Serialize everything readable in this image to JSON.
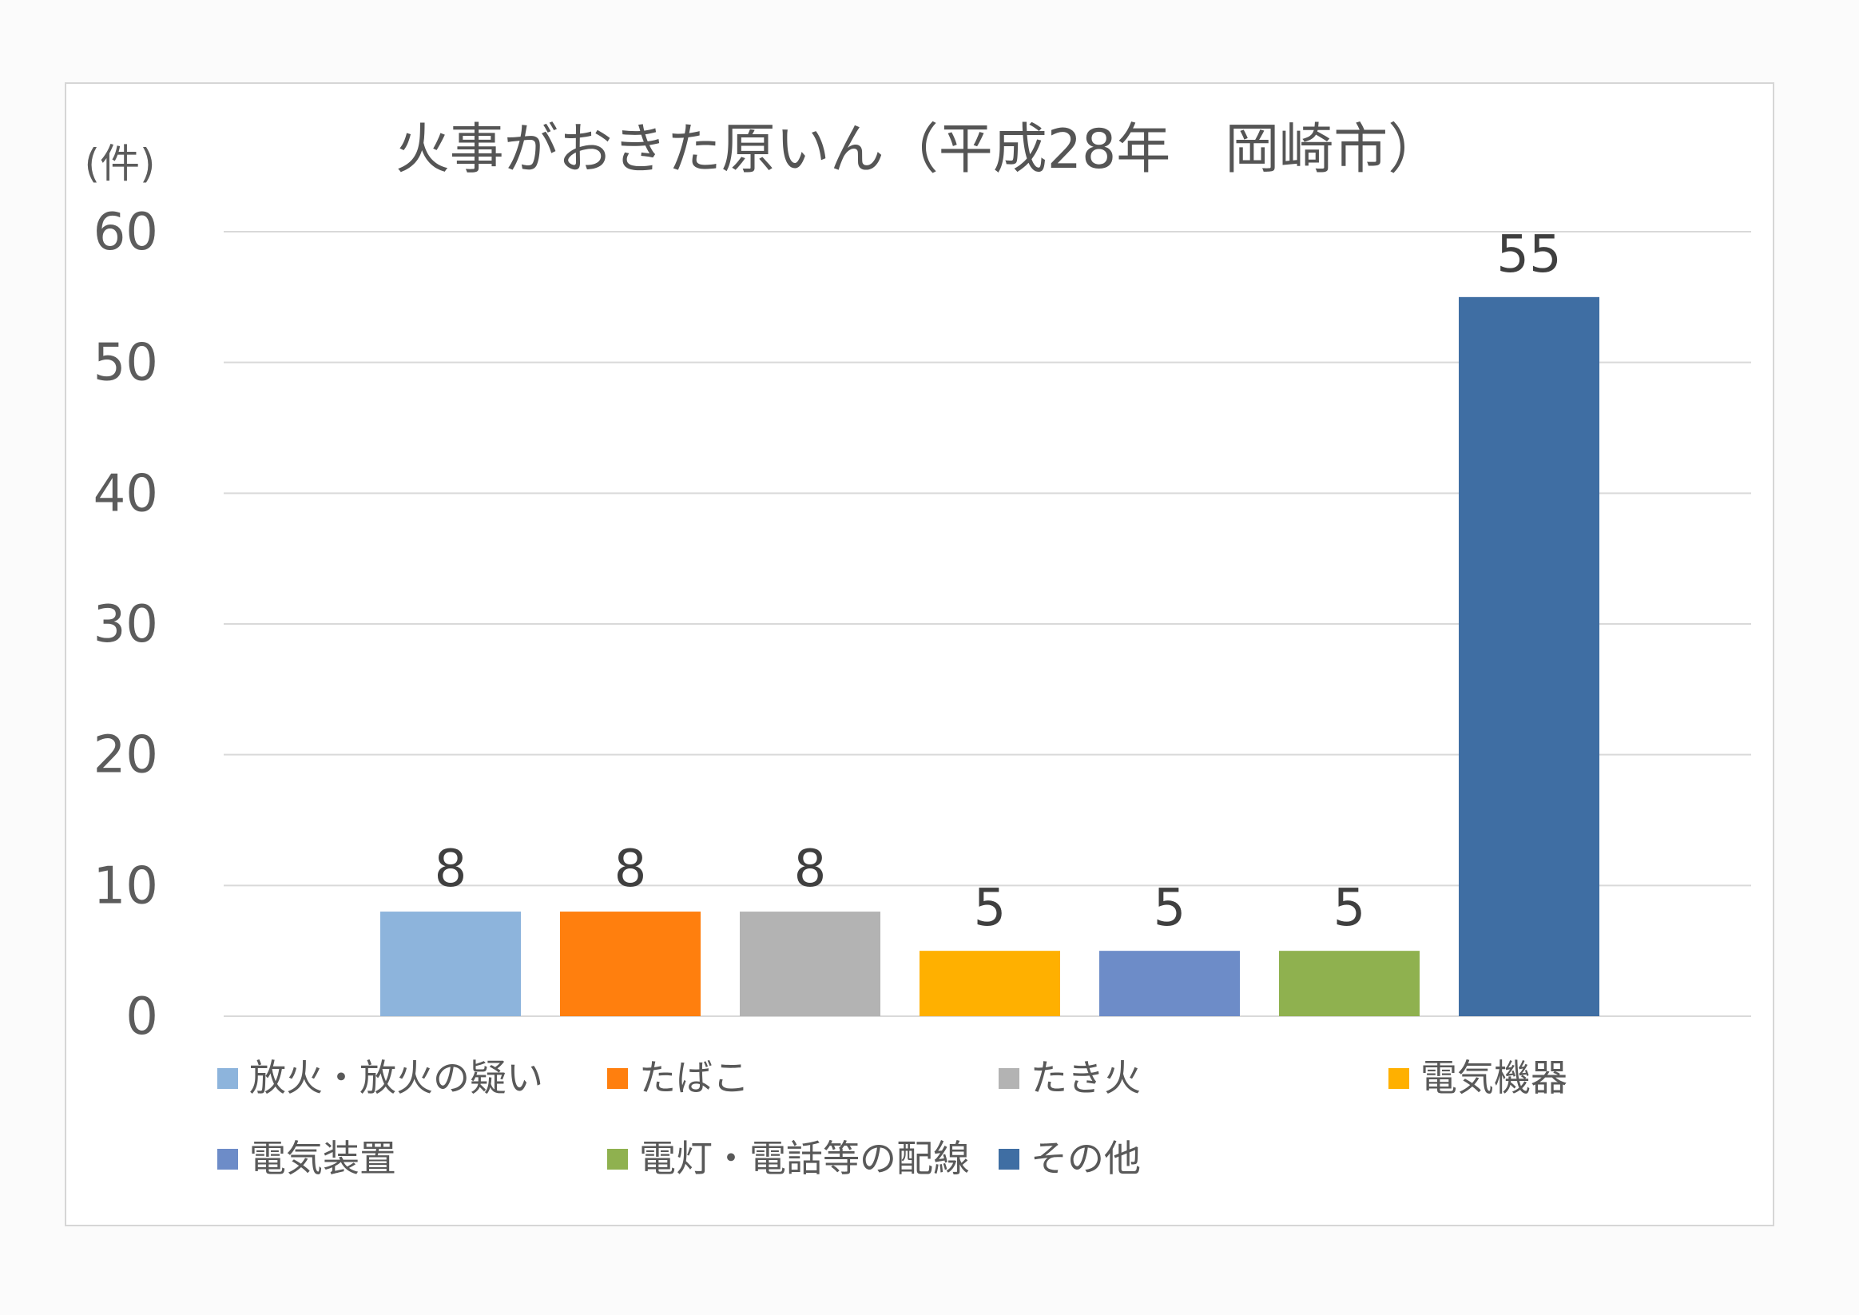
{
  "chart_data": {
    "type": "bar",
    "title": "火事がおきた原いん（平成28年　岡崎市）",
    "ylabel": "(件)",
    "xlabel": "",
    "ylim": [
      0,
      60
    ],
    "yticks": [
      0,
      10,
      20,
      30,
      40,
      50,
      60
    ],
    "grid": true,
    "legend_position": "bottom",
    "series": [
      {
        "name": "放火・放火の疑い",
        "value": 8,
        "color": "#8db4dc"
      },
      {
        "name": "たばこ",
        "value": 8,
        "color": "#ff7f0e"
      },
      {
        "name": "たき火",
        "value": 8,
        "color": "#b3b3b3"
      },
      {
        "name": "電気機器",
        "value": 5,
        "color": "#ffb000"
      },
      {
        "name": "電気装置",
        "value": 5,
        "color": "#6d8cc8"
      },
      {
        "name": "電灯・電話等の配線",
        "value": 5,
        "color": "#8fb14f"
      },
      {
        "name": "その他",
        "value": 55,
        "color": "#3f6ea3"
      }
    ]
  }
}
